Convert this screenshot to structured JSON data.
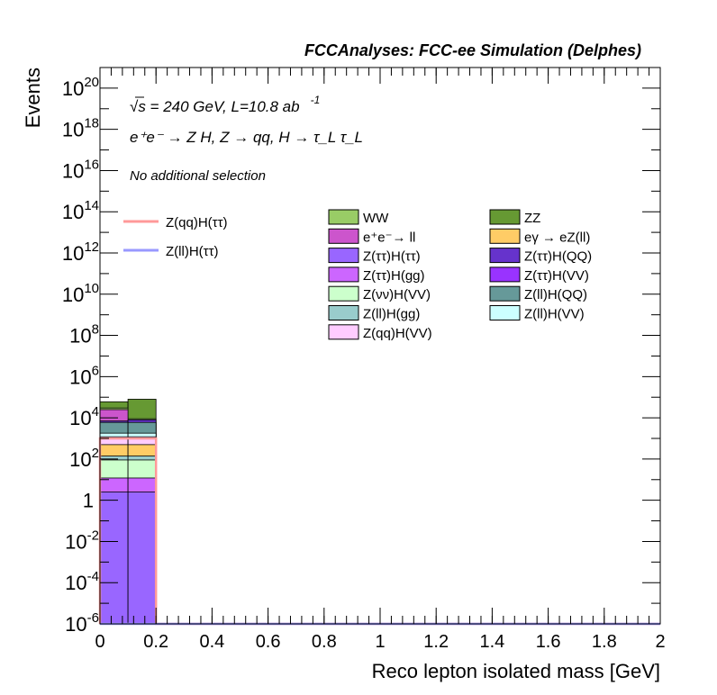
{
  "header": {
    "title": "FCCAnalyses: FCC-ee Simulation (Delphes)"
  },
  "annotations": {
    "energy_line": "√s = 240 GeV, L=10.8 ab",
    "lumi_exp": "-1",
    "process_line": "e⁺e⁻ → Z H, Z → qq, H → τ_L τ_L",
    "selection": "No additional selection"
  },
  "chart_data": {
    "type": "bar",
    "title": "",
    "xlabel": "Reco lepton isolated mass [GeV]",
    "ylabel": "Events",
    "xlim": [
      0,
      2
    ],
    "ylim": [
      1e-06,
      1e+21
    ],
    "yscale": "log",
    "bins": [
      [
        0,
        0.1
      ],
      [
        0.1,
        0.2
      ]
    ],
    "x_ticks": [
      "0",
      "0.2",
      "0.4",
      "0.6",
      "0.8",
      "1",
      "1.2",
      "1.4",
      "1.6",
      "1.8",
      "2"
    ],
    "y_ticks": [
      {
        "base": "10",
        "exp": "-6",
        "value": 1e-06
      },
      {
        "base": "10",
        "exp": "-4",
        "value": 0.0001
      },
      {
        "base": "10",
        "exp": "-2",
        "value": 0.01
      },
      {
        "base": "1",
        "exp": "",
        "value": 1
      },
      {
        "base": "10",
        "exp": "2",
        "value": 100.0
      },
      {
        "base": "10",
        "exp": "4",
        "value": 10000.0
      },
      {
        "base": "10",
        "exp": "6",
        "value": 1000000.0
      },
      {
        "base": "10",
        "exp": "8",
        "value": 100000000.0
      },
      {
        "base": "10",
        "exp": "10",
        "value": 10000000000.0
      },
      {
        "base": "10",
        "exp": "12",
        "value": 1000000000000.0
      },
      {
        "base": "10",
        "exp": "14",
        "value": 100000000000000.0
      },
      {
        "base": "10",
        "exp": "16",
        "value": 1e+16
      },
      {
        "base": "10",
        "exp": "18",
        "value": 1e+18
      },
      {
        "base": "10",
        "exp": "20",
        "value": 1e+20
      }
    ],
    "stack_cumulative": [
      {
        "name": "Z(ττ)H(ττ)",
        "color": "#9966ff",
        "values": [
          2.5,
          2.5
        ]
      },
      {
        "name": "Z(ττ)H(gg)",
        "color": "#cc66ff",
        "values": [
          12,
          12
        ]
      },
      {
        "name": "Z(νν)H(VV)",
        "color": "#ccffcc",
        "values": [
          90,
          90
        ]
      },
      {
        "name": "Z(ll)H(gg)",
        "color": "#99cccc",
        "values": [
          140,
          140
        ]
      },
      {
        "name": "eγ → eZ(ll)",
        "color": "#ffcc66",
        "values": [
          500,
          500
        ]
      },
      {
        "name": "Z(qq)H(VV)",
        "color": "#ffccff",
        "values": [
          1200,
          1200
        ]
      },
      {
        "name": "Z(ll)H(VV)",
        "color": "#ccffff",
        "values": [
          1800,
          1800
        ]
      },
      {
        "name": "Z(ll)H(QQ)",
        "color": "#669999",
        "values": [
          6000,
          6000
        ]
      },
      {
        "name": "Z(ττ)H(QQ)",
        "color": "#6633cc",
        "values": [
          7000,
          8000
        ]
      },
      {
        "name": "e⁺e⁻→ ll",
        "color": "#cc55cc",
        "values": [
          25000,
          6000
        ]
      },
      {
        "name": "WW",
        "color": "#99cc66",
        "values": [
          30000,
          9000
        ]
      },
      {
        "name": "ZZ",
        "color": "#669933",
        "values": [
          60000,
          80000
        ]
      }
    ],
    "signal_lines": [
      {
        "name": "Z(qq)H(ττ)",
        "color": "#ff9999",
        "values": [
          1000,
          1000
        ]
      },
      {
        "name": "Z(ll)H(ττ)",
        "color": "#9999ff",
        "values": [
          1e-06,
          1e-06
        ]
      }
    ],
    "legend": {
      "placement": "top-right",
      "lines": [
        {
          "name": "Z(qq)H(ττ)",
          "color": "#ff9999"
        },
        {
          "name": "Z(ll)H(ττ)",
          "color": "#9999ff"
        }
      ],
      "col1": [
        {
          "name": "WW",
          "color": "#99cc66"
        },
        {
          "name": "e⁺e⁻→ ll",
          "color": "#cc55cc"
        },
        {
          "name": "Z(ττ)H(ττ)",
          "color": "#9966ff"
        },
        {
          "name": "Z(ττ)H(gg)",
          "color": "#cc66ff"
        },
        {
          "name": "Z(νν)H(VV)",
          "color": "#ccffcc"
        },
        {
          "name": "Z(ll)H(gg)",
          "color": "#99cccc"
        },
        {
          "name": "Z(qq)H(VV)",
          "color": "#ffccff"
        }
      ],
      "col2": [
        {
          "name": "ZZ",
          "color": "#669933"
        },
        {
          "name": "eγ → eZ(ll)",
          "color": "#ffcc66"
        },
        {
          "name": "Z(ττ)H(QQ)",
          "color": "#6633cc"
        },
        {
          "name": "Z(ττ)H(VV)",
          "color": "#9933ff"
        },
        {
          "name": "Z(ll)H(QQ)",
          "color": "#669999"
        },
        {
          "name": "Z(ll)H(VV)",
          "color": "#ccffff"
        }
      ]
    }
  }
}
